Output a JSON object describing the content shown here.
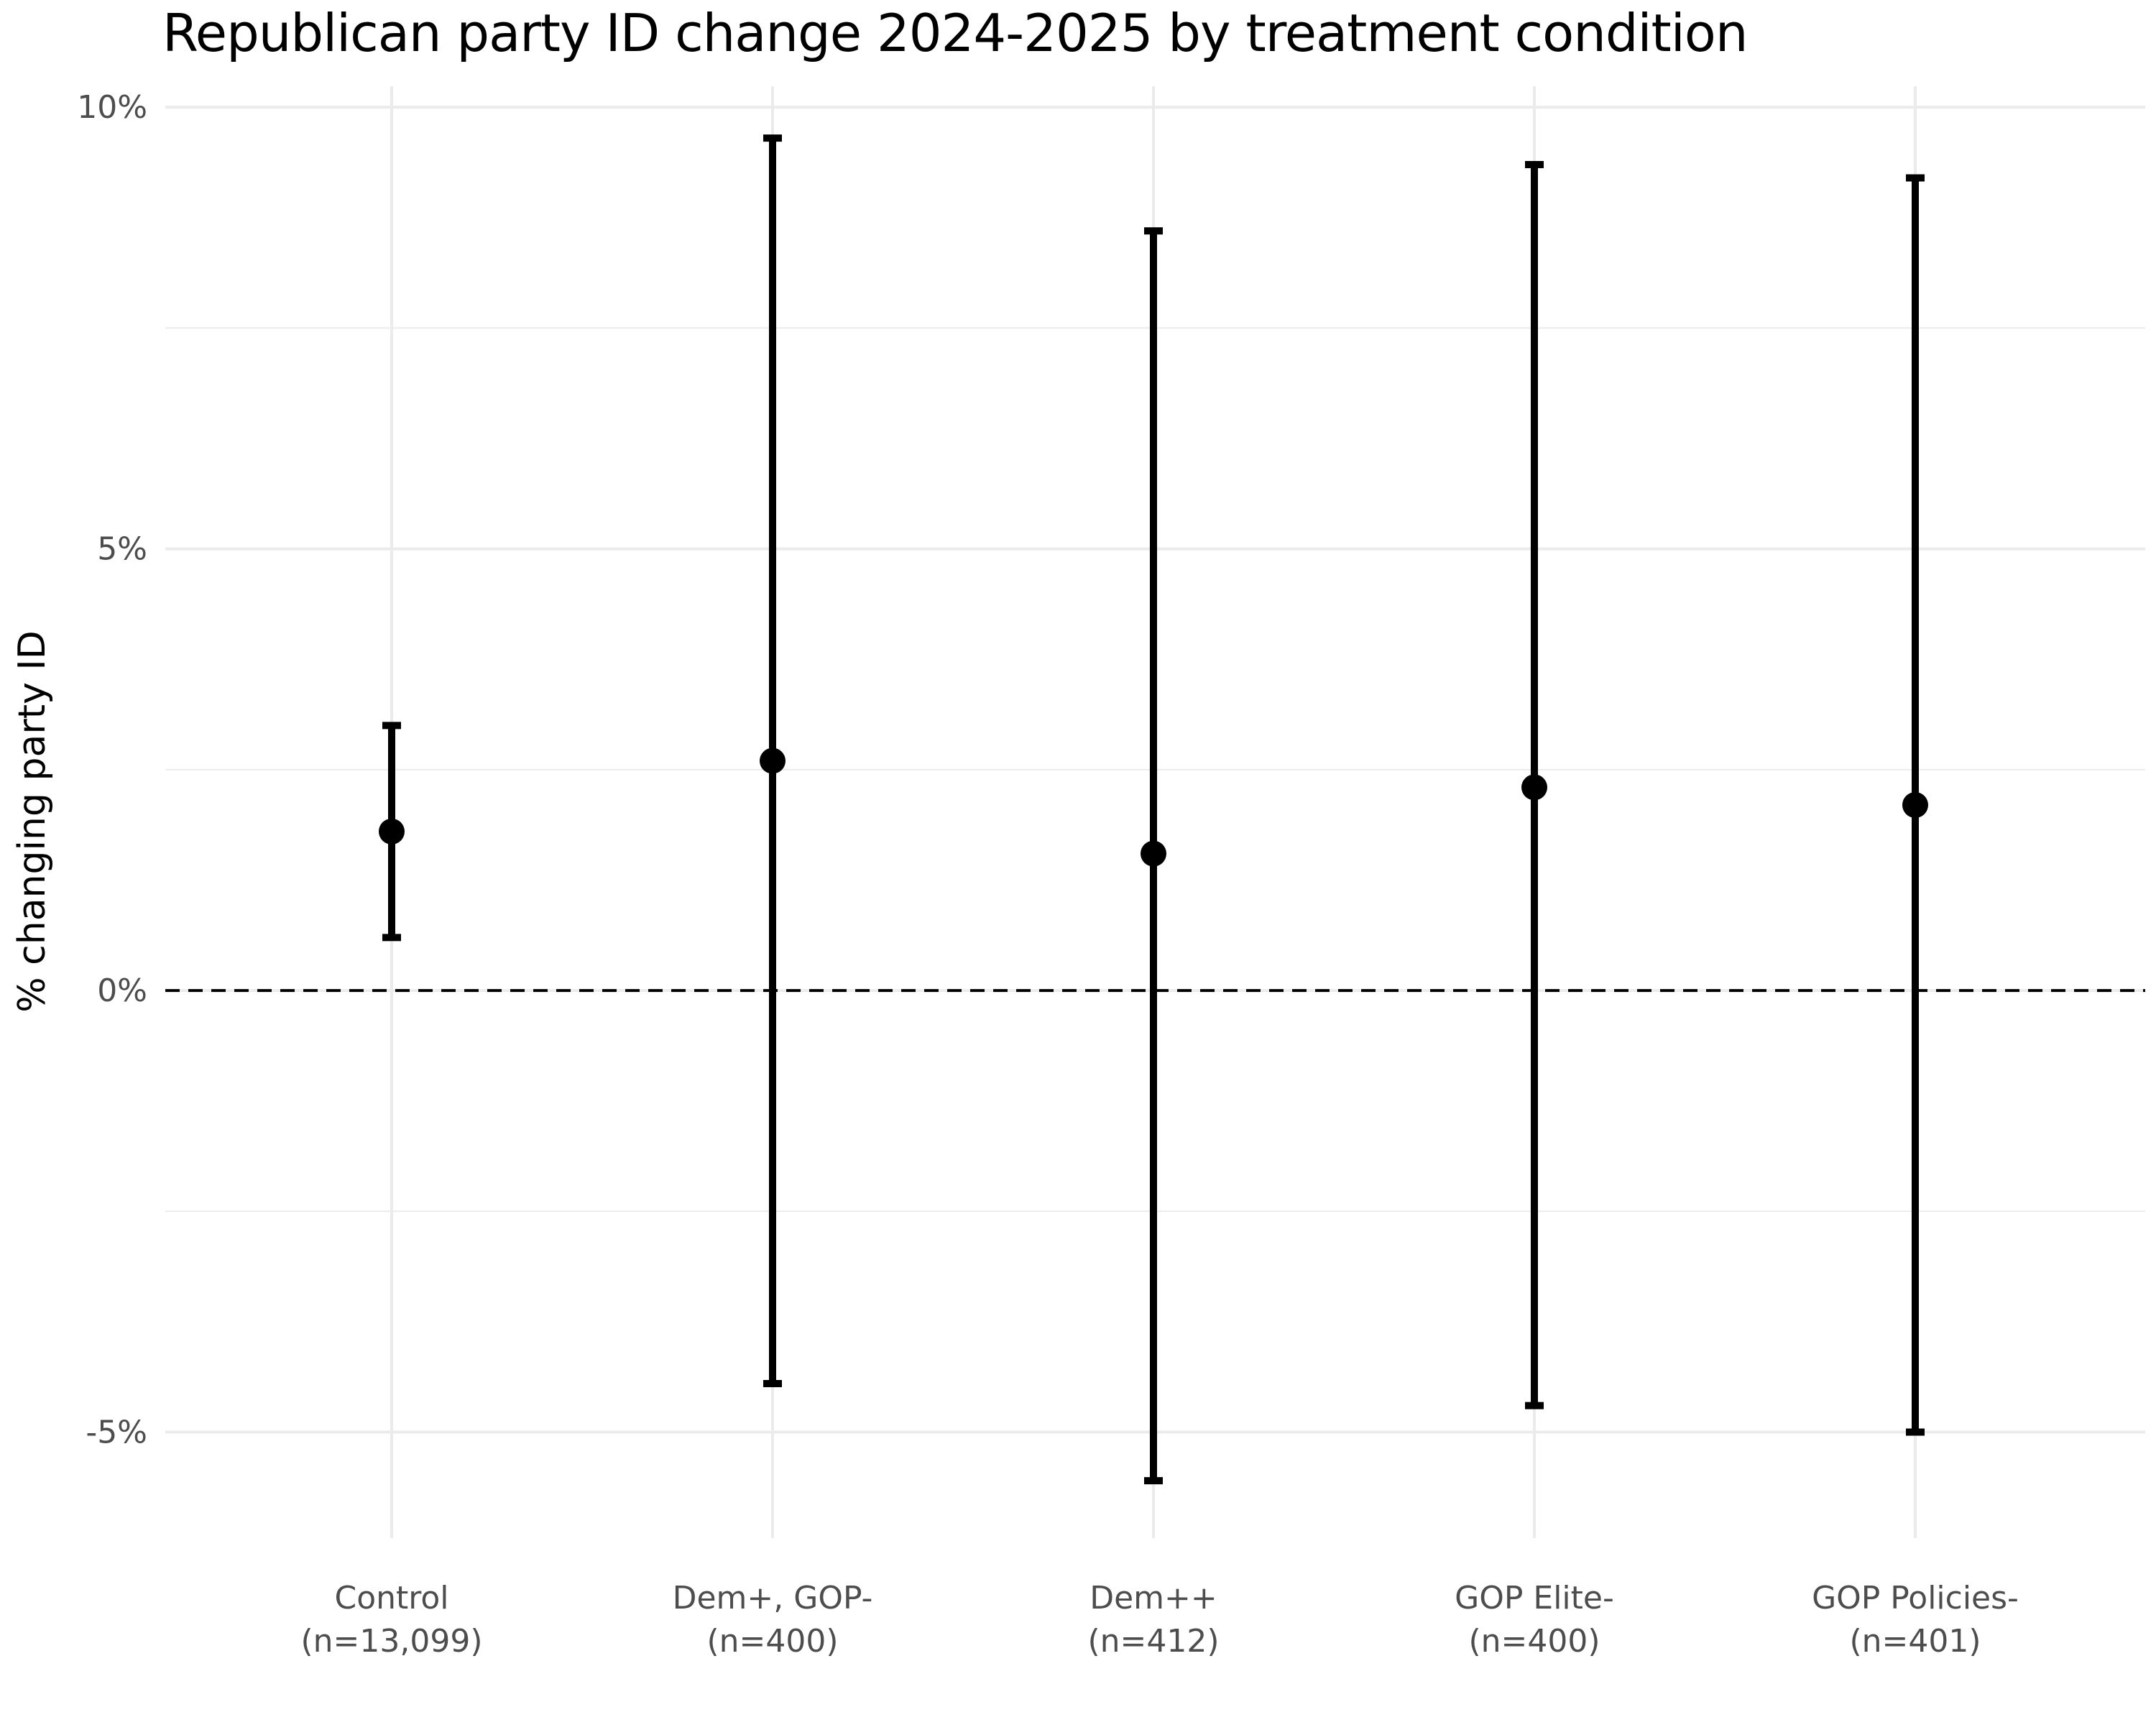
{
  "chart_data": {
    "type": "errorbar",
    "title": "Republican party ID change 2024-2025 by treatment condition",
    "xlabel": "",
    "ylabel": "% changing party ID",
    "ylim": [
      -6.2,
      10.4
    ],
    "y_ticks": [
      -5,
      0,
      5,
      10
    ],
    "y_tick_labels": [
      "-5%",
      "0%",
      "5%",
      "10%"
    ],
    "grid": true,
    "reference_line": {
      "y": 0,
      "style": "dashed"
    },
    "categories": [
      {
        "label": "Control",
        "n_label": "(n=13,099)"
      },
      {
        "label": "Dem+, GOP-",
        "n_label": "(n=400)"
      },
      {
        "label": "Dem++",
        "n_label": "(n=412)"
      },
      {
        "label": "GOP Elite-",
        "n_label": "(n=400)"
      },
      {
        "label": "GOP Policies-",
        "n_label": "(n=401)"
      }
    ],
    "values": [
      1.8,
      2.6,
      1.55,
      2.3,
      2.1
    ],
    "lower": [
      0.6,
      -4.45,
      -5.55,
      -4.7,
      -5.0
    ],
    "upper": [
      3.0,
      9.65,
      8.6,
      9.35,
      9.2
    ],
    "colors": {
      "point": "#000000",
      "grid": "#ebebeb",
      "tick_text": "#4d4d4d"
    }
  }
}
